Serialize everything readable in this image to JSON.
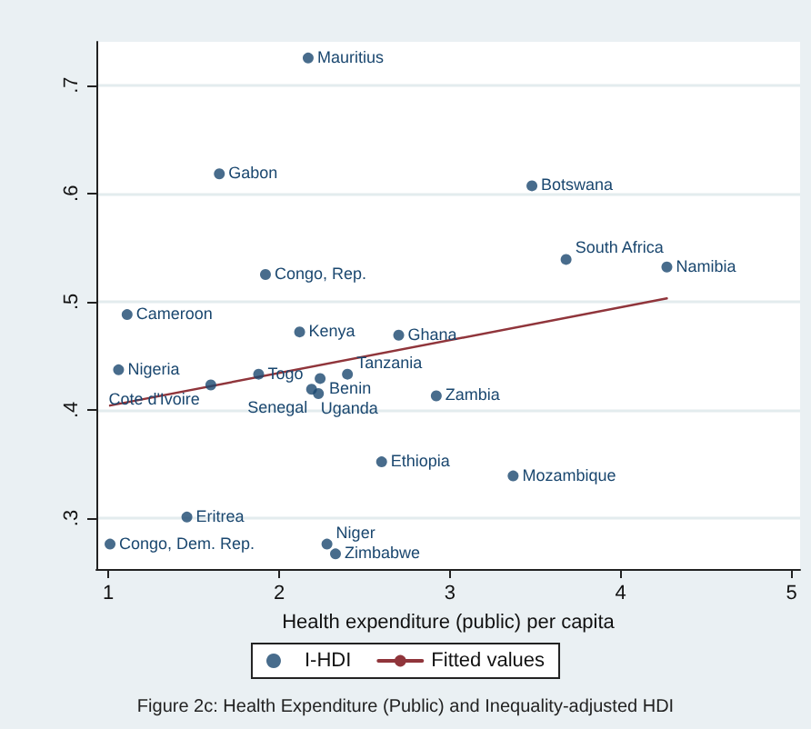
{
  "chart_data": {
    "type": "scatter",
    "title": "Figure 2c: Health Expenditure (Public) and Inequality-adjusted HDI",
    "xlabel": "Health expenditure (public) per capita",
    "series": [
      {
        "name": "I-HDI",
        "color": "#1a476f",
        "x": [
          2.17,
          1.65,
          3.48,
          1.92,
          3.68,
          4.27,
          1.11,
          2.12,
          2.7,
          1.06,
          1.88,
          2.24,
          2.4,
          1.6,
          2.19,
          2.23,
          2.92,
          2.6,
          3.37,
          1.46,
          1.01,
          2.28,
          2.33
        ],
        "values": [
          0.725,
          0.618,
          0.607,
          0.525,
          0.539,
          0.532,
          0.488,
          0.472,
          0.469,
          0.437,
          0.433,
          0.429,
          0.433,
          0.423,
          0.419,
          0.415,
          0.413,
          0.352,
          0.339,
          0.301,
          0.276,
          0.276,
          0.267
        ]
      },
      {
        "name": "Fitted values",
        "type": "line",
        "marker": "none",
        "color": "#90353b",
        "x": [
          1.01,
          4.27
        ],
        "values": [
          0.404,
          0.503
        ]
      }
    ],
    "annotations": [
      {
        "text": "Mauritius",
        "x": 2.17,
        "y": 0.725
      },
      {
        "text": "Gabon",
        "x": 1.65,
        "y": 0.618
      },
      {
        "text": "Botswana",
        "x": 3.48,
        "y": 0.607
      },
      {
        "text": "Congo, Rep.",
        "x": 1.92,
        "y": 0.525
      },
      {
        "text": "South Africa",
        "x": 3.68,
        "y": 0.539
      },
      {
        "text": "Namibia",
        "x": 4.27,
        "y": 0.532
      },
      {
        "text": "Cameroon",
        "x": 1.11,
        "y": 0.488
      },
      {
        "text": "Kenya",
        "x": 2.12,
        "y": 0.472
      },
      {
        "text": "Ghana",
        "x": 2.7,
        "y": 0.469
      },
      {
        "text": "Nigeria",
        "x": 1.06,
        "y": 0.437
      },
      {
        "text": "Togo",
        "x": 1.88,
        "y": 0.433
      },
      {
        "text": "Benin",
        "x": 2.24,
        "y": 0.429
      },
      {
        "text": "Tanzania",
        "x": 2.4,
        "y": 0.433
      },
      {
        "text": "Cote d'Ivoire",
        "x": 1.6,
        "y": 0.423
      },
      {
        "text": "Uganda",
        "x": 2.19,
        "y": 0.419
      },
      {
        "text": "Senegal",
        "x": 2.23,
        "y": 0.415
      },
      {
        "text": "Zambia",
        "x": 2.92,
        "y": 0.413
      },
      {
        "text": "Ethiopia",
        "x": 2.6,
        "y": 0.352
      },
      {
        "text": "Mozambique",
        "x": 3.37,
        "y": 0.339
      },
      {
        "text": "Eritrea",
        "x": 1.46,
        "y": 0.301
      },
      {
        "text": "Congo, Dem. Rep.",
        "x": 1.01,
        "y": 0.276
      },
      {
        "text": "Niger",
        "x": 2.28,
        "y": 0.276
      },
      {
        "text": "Zimbabwe",
        "x": 2.33,
        "y": 0.267
      }
    ],
    "xlim": [
      0.93,
      5.05
    ],
    "xticks": [
      1,
      2,
      3,
      4,
      5
    ],
    "ylim": [
      0.253,
      0.74
    ],
    "yticks": [
      {
        "value": 0.3,
        "label": ".3"
      },
      {
        "value": 0.4,
        "label": ".4"
      },
      {
        "value": 0.5,
        "label": ".5"
      },
      {
        "value": 0.6,
        "label": ".6"
      },
      {
        "value": 0.7,
        "label": ".7"
      }
    ],
    "grid": "y",
    "legend": "bottom",
    "marker": "circle",
    "line_style": "solid"
  }
}
